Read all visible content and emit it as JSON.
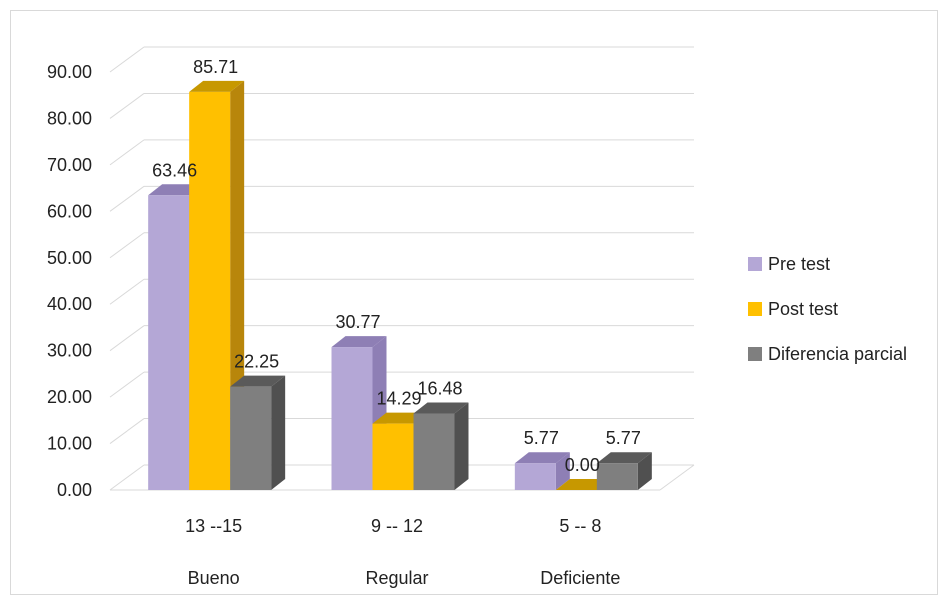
{
  "chart_data": {
    "type": "bar",
    "title": "",
    "xlabel": "",
    "ylabel": "",
    "ylim": [
      0,
      90
    ],
    "yticks": [
      "0.00",
      "10.00",
      "20.00",
      "30.00",
      "40.00",
      "50.00",
      "60.00",
      "70.00",
      "80.00",
      "90.00"
    ],
    "categories": [
      "13 --15",
      "9 -- 12",
      "5 -- 8"
    ],
    "category_groups": [
      "Bueno",
      "Regular",
      "Deficiente"
    ],
    "series": [
      {
        "name": "Pre test",
        "values": [
          63.46,
          30.77,
          5.77
        ],
        "labels": [
          "63.46",
          "30.77",
          "5.77"
        ],
        "color": "#b4a7d6",
        "side": "#8e7fb5",
        "top": "#8e7fb5"
      },
      {
        "name": "Post test",
        "values": [
          85.71,
          14.29,
          0.0
        ],
        "labels": [
          "85.71",
          "14.29",
          "0.00"
        ],
        "color": "#ffc000",
        "side": "#b8860b",
        "top": "#c79800"
      },
      {
        "name": "Diferencia parcial",
        "values": [
          22.25,
          16.48,
          5.77
        ],
        "labels": [
          "22.25",
          "16.48",
          "5.77"
        ],
        "color": "#7f7f7f",
        "side": "#505050",
        "top": "#5a5a5a"
      }
    ],
    "grid": true,
    "legend_position": "right",
    "style": "3d-clustered-column"
  }
}
